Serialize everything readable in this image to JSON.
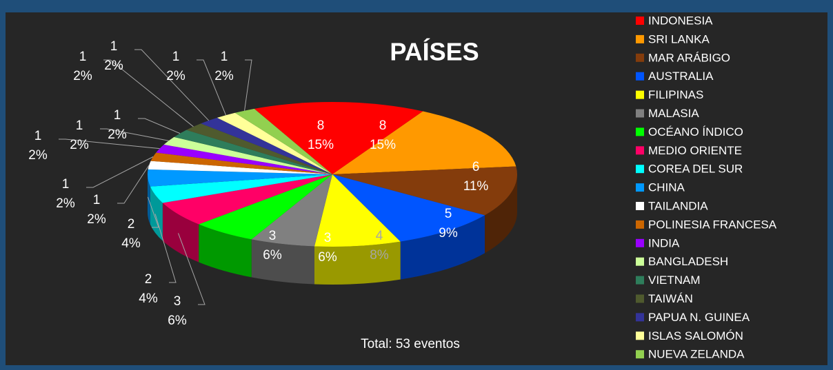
{
  "chart_data": {
    "type": "pie3d",
    "title": "PAÍSES",
    "annotation": "Total: 53 eventos",
    "categories": [
      "INDONESIA",
      "SRI LANKA",
      "MAR ARÁBIGO",
      "AUSTRALIA",
      "FILIPINAS",
      "MALASIA",
      "OCÉANO ÍNDICO",
      "MEDIO ORIENTE",
      "COREA DEL SUR",
      "CHINA",
      "TAILANDIA",
      "POLINESIA FRANCESA",
      "INDIA",
      "BANGLADESH",
      "VIETNAM",
      "TAIWÁN",
      "PAPUA N. GUINEA",
      "ISLAS SALOMÓN",
      "NUEVA ZELANDA"
    ],
    "values": [
      8,
      8,
      6,
      5,
      4,
      3,
      3,
      3,
      2,
      2,
      1,
      1,
      1,
      1,
      1,
      1,
      1,
      1,
      1
    ],
    "value_labels": [
      "15%",
      "15%",
      "11%",
      "9%",
      "8%",
      "6%",
      "6%",
      "6%",
      "4%",
      "4%",
      "2%",
      "2%",
      "2%",
      "2%",
      "2%",
      "2%",
      "2%",
      "2%",
      "2%"
    ],
    "colors": [
      "#ff0000",
      "#ff9900",
      "#843c0c",
      "#0055ff",
      "#ffff00",
      "#808080",
      "#00ff00",
      "#ff0066",
      "#00ffff",
      "#0099ff",
      "#ffffff",
      "#cc6600",
      "#9900ff",
      "#ccff99",
      "#2e7d5b",
      "#4f5a2e",
      "#333399",
      "#ffff99",
      "#92d050"
    ],
    "legend": "right"
  }
}
